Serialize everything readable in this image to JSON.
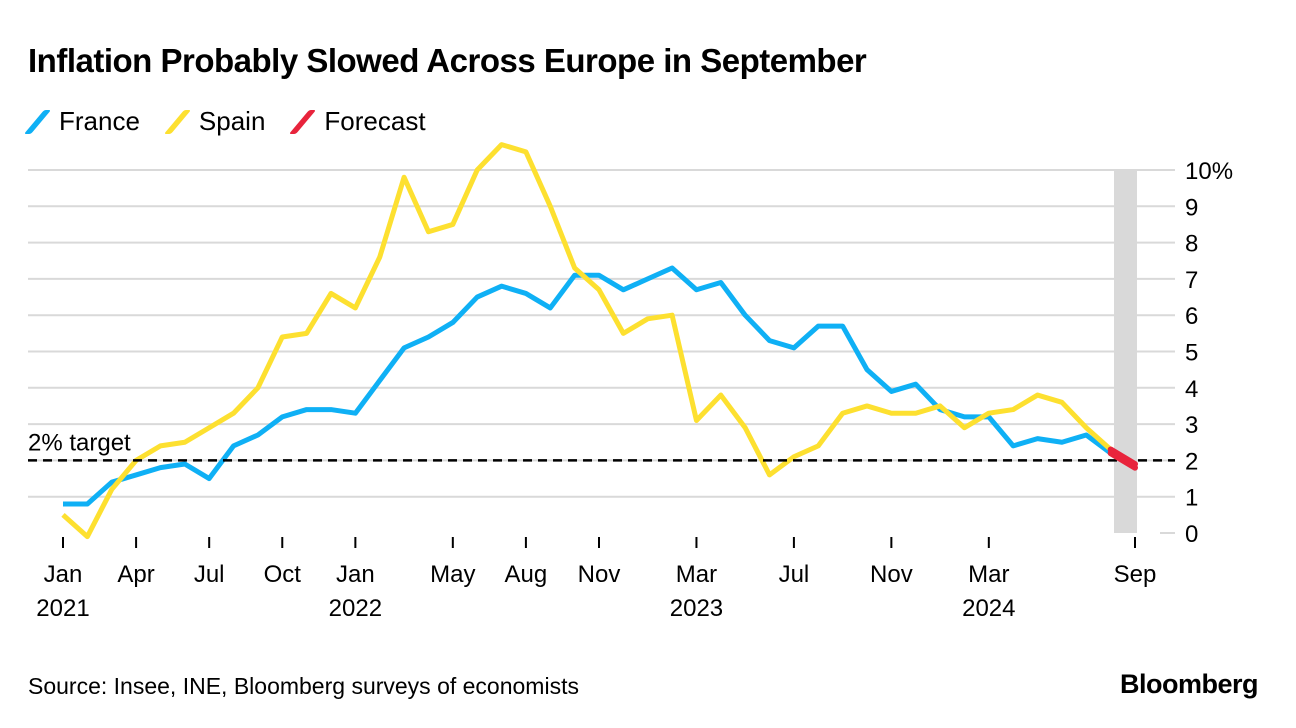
{
  "title": "Inflation Probably Slowed Across Europe in September",
  "source": "Source: Insee, INE, Bloomberg surveys of economists",
  "logo": "Bloomberg",
  "colors": {
    "france": "#0fb0f5",
    "spain": "#fde030",
    "forecast": "#e8243c",
    "grid": "#d9d9d9",
    "shade": "#d9d9d9"
  },
  "chart_data": {
    "type": "line",
    "title": "Inflation Probably Slowed Across Europe in September",
    "xlabel": "",
    "ylabel": "",
    "ylim": [
      0,
      10
    ],
    "y_ticks": [
      "0",
      "1",
      "2",
      "3",
      "4",
      "5",
      "6",
      "7",
      "8",
      "9",
      "10%"
    ],
    "x_start": "Jan 2021",
    "x_ticks": [
      {
        "month_index": 0,
        "label": "Jan",
        "year": "2021"
      },
      {
        "month_index": 3,
        "label": "Apr",
        "year": ""
      },
      {
        "month_index": 6,
        "label": "Jul",
        "year": ""
      },
      {
        "month_index": 9,
        "label": "Oct",
        "year": ""
      },
      {
        "month_index": 12,
        "label": "Jan",
        "year": "2022"
      },
      {
        "month_index": 16,
        "label": "May",
        "year": ""
      },
      {
        "month_index": 19,
        "label": "Aug",
        "year": ""
      },
      {
        "month_index": 22,
        "label": "Nov",
        "year": ""
      },
      {
        "month_index": 26,
        "label": "Mar",
        "year": "2023"
      },
      {
        "month_index": 30,
        "label": "Jul",
        "year": ""
      },
      {
        "month_index": 34,
        "label": "Nov",
        "year": ""
      },
      {
        "month_index": 38,
        "label": "Mar",
        "year": "2024"
      },
      {
        "month_index": 44,
        "label": "Sep",
        "year": ""
      }
    ],
    "legend_position": "top-left",
    "grid": true,
    "reference_line": {
      "value": 2,
      "label": "2% target"
    },
    "shaded_month_index": 44,
    "series": [
      {
        "name": "France",
        "values": [
          0.8,
          0.8,
          1.4,
          1.6,
          1.8,
          1.9,
          1.5,
          2.4,
          2.7,
          3.2,
          3.4,
          3.4,
          3.3,
          4.2,
          5.1,
          5.4,
          5.8,
          6.5,
          6.8,
          6.6,
          6.2,
          7.1,
          7.1,
          6.7,
          7.0,
          7.3,
          6.7,
          6.9,
          6.0,
          5.3,
          5.1,
          5.7,
          5.7,
          4.5,
          3.9,
          4.1,
          3.4,
          3.2,
          3.2,
          2.4,
          2.6,
          2.5,
          2.7,
          2.2
        ],
        "forecast": 1.8
      },
      {
        "name": "Spain",
        "values": [
          0.5,
          -0.1,
          1.2,
          2.0,
          2.4,
          2.5,
          2.9,
          3.3,
          4.0,
          5.4,
          5.5,
          6.6,
          6.2,
          7.6,
          9.8,
          8.3,
          8.5,
          10.0,
          10.7,
          10.5,
          9.0,
          7.3,
          6.7,
          5.5,
          5.9,
          6.0,
          3.1,
          3.8,
          2.9,
          1.6,
          2.1,
          2.4,
          3.3,
          3.5,
          3.3,
          3.3,
          3.5,
          2.9,
          3.3,
          3.4,
          3.8,
          3.6,
          2.9,
          2.3
        ],
        "forecast": 1.9
      },
      {
        "name": "Forecast"
      }
    ]
  }
}
